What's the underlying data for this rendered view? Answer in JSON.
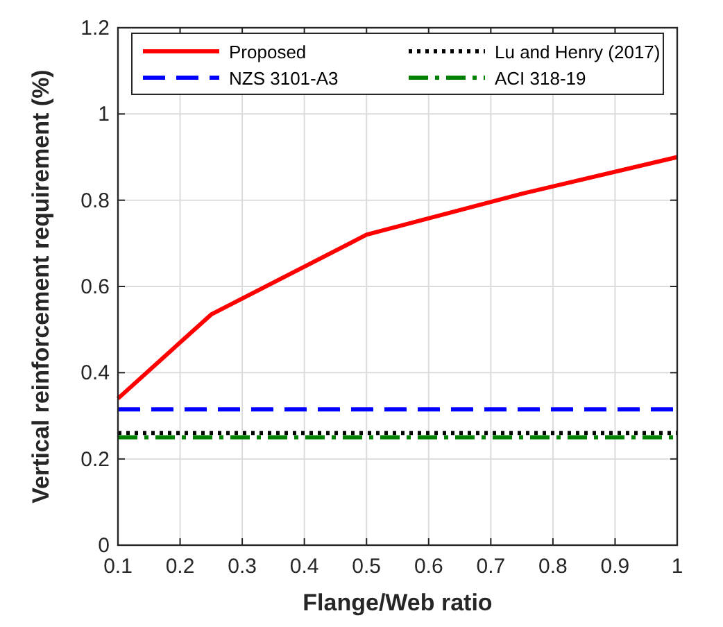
{
  "chart_data": {
    "type": "line",
    "xlabel": "Flange/Web ratio",
    "ylabel": "Vertical reinforcement requirement (%)",
    "xlim": [
      0.1,
      1
    ],
    "xticks": [
      0.1,
      0.2,
      0.3,
      0.4,
      0.5,
      0.6,
      0.7,
      0.8,
      0.9,
      1
    ],
    "ylim": [
      0,
      1.2
    ],
    "yticks": [
      0,
      0.2,
      0.4,
      0.6,
      0.8,
      1,
      1.2
    ],
    "grid": true,
    "legend": "top",
    "marker": "none",
    "series": [
      {
        "name": "Proposed",
        "color": "#ff0000",
        "x": [
          0.1,
          0.25,
          0.5,
          0.75,
          1
        ],
        "values": [
          0.34,
          0.535,
          0.72,
          0.815,
          0.9
        ],
        "line_style": "solid"
      },
      {
        "name": "Lu and Henry (2017)",
        "color": "#000000",
        "x": [
          0.1,
          1
        ],
        "values": [
          0.26,
          0.26
        ],
        "line_style": "dotted"
      },
      {
        "name": "NZS 3101-A3",
        "color": "#0000ff",
        "x": [
          0.1,
          1
        ],
        "values": [
          0.315,
          0.315
        ],
        "line_style": "dashed"
      },
      {
        "name": "ACI 318-19",
        "color": "#008000",
        "x": [
          0.1,
          1
        ],
        "values": [
          0.25,
          0.25
        ],
        "line_style": "dashdot"
      }
    ]
  }
}
